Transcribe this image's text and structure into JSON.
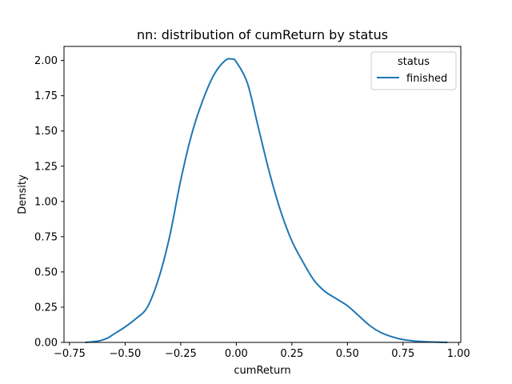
{
  "chart_data": {
    "type": "line",
    "title": "nn: distribution of cumReturn by status",
    "xlabel": "cumReturn",
    "ylabel": "Density",
    "xlim": [
      -0.775,
      1.01
    ],
    "ylim": [
      0,
      2.1
    ],
    "x_ticks": [
      -0.75,
      -0.5,
      -0.25,
      0.0,
      0.25,
      0.5,
      0.75,
      1.0
    ],
    "x_tick_labels": [
      "−0.75",
      "−0.50",
      "−0.25",
      "0.00",
      "0.25",
      "0.50",
      "0.75",
      "1.00"
    ],
    "y_ticks": [
      0,
      0.25,
      0.5,
      0.75,
      1.0,
      1.25,
      1.5,
      1.75,
      2.0
    ],
    "y_tick_labels": [
      "0.00",
      "0.25",
      "0.50",
      "0.75",
      "1.00",
      "1.25",
      "1.50",
      "1.75",
      "2.00"
    ],
    "grid": false,
    "legend": {
      "title": "status",
      "placement": "top-right"
    },
    "series": [
      {
        "name": "finished",
        "color": "#1f77b4",
        "x": [
          -0.68,
          -0.62,
          -0.58,
          -0.55,
          -0.5,
          -0.45,
          -0.4,
          -0.35,
          -0.3,
          -0.25,
          -0.2,
          -0.15,
          -0.1,
          -0.05,
          -0.02,
          0.0,
          0.05,
          0.1,
          0.15,
          0.2,
          0.25,
          0.3,
          0.35,
          0.4,
          0.45,
          0.5,
          0.55,
          0.6,
          0.65,
          0.7,
          0.75,
          0.8,
          0.85,
          0.9,
          0.95
        ],
        "y": [
          0.0,
          0.01,
          0.03,
          0.06,
          0.11,
          0.17,
          0.25,
          0.45,
          0.75,
          1.15,
          1.48,
          1.72,
          1.9,
          2.0,
          2.01,
          1.99,
          1.84,
          1.52,
          1.2,
          0.93,
          0.72,
          0.57,
          0.44,
          0.36,
          0.31,
          0.26,
          0.19,
          0.12,
          0.07,
          0.04,
          0.02,
          0.01,
          0.005,
          0.002,
          0.0
        ]
      }
    ]
  }
}
